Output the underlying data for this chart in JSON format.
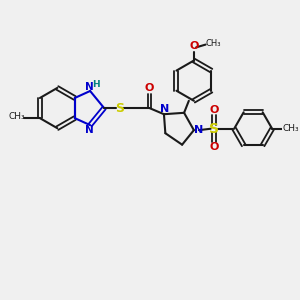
{
  "background_color": "#f0f0f0",
  "bond_color": "#1a1a1a",
  "aromatic_color": "#0000cc",
  "n_color": "#0000cc",
  "s_color": "#cccc00",
  "o_color": "#cc0000",
  "h_color": "#008080",
  "figsize": [
    3.0,
    3.0
  ],
  "dpi": 100,
  "xlim": [
    0,
    10
  ],
  "ylim": [
    0,
    10
  ]
}
